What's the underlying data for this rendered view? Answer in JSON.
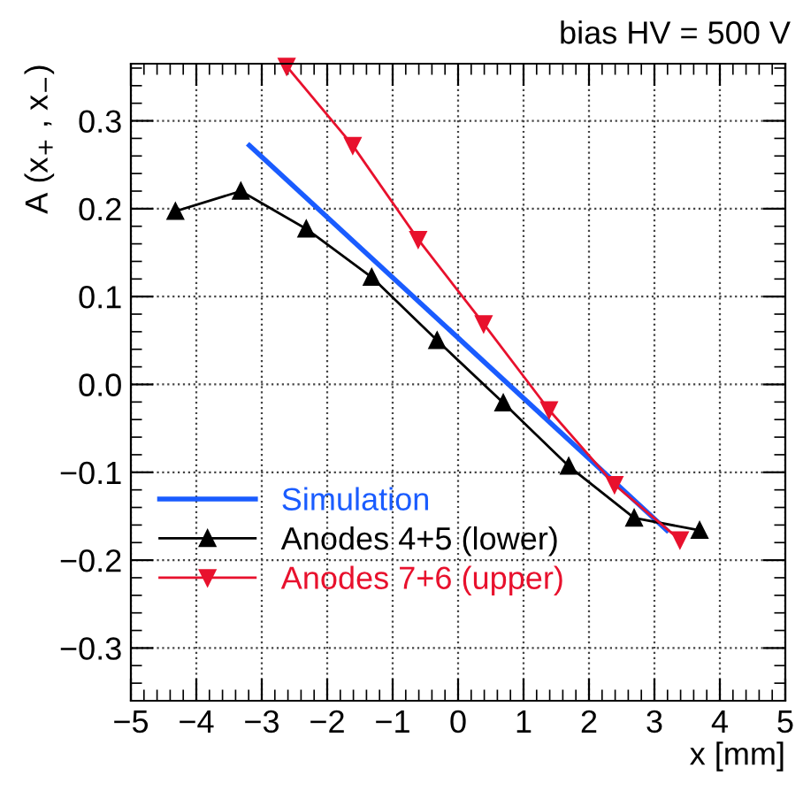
{
  "chart_data": {
    "type": "line",
    "title": "bias HV = 500 V",
    "xlabel": "x [mm]",
    "ylabel": "A (x$_{+}$ , x$_{−}$)",
    "xlim": [
      -5,
      5
    ],
    "ylim": [
      -0.36,
      0.365
    ],
    "xticks": [
      -5,
      -4,
      -3,
      -2,
      -1,
      0,
      1,
      2,
      3,
      4,
      5
    ],
    "yticks": [
      {
        "value": -0.3,
        "label": "−0.3"
      },
      {
        "value": -0.2,
        "label": "−0.2"
      },
      {
        "value": -0.1,
        "label": "−0.1"
      },
      {
        "value": 0,
        "label": "0.0"
      },
      0.1,
      0.2,
      0.3
    ],
    "grid": true,
    "legend": "bottom left",
    "series": [
      {
        "name": "Simulation",
        "color": "#1a5cff",
        "marker": "none",
        "x": [
          -3.19,
          3.19
        ],
        "values": [
          0.272,
          -0.166
        ]
      },
      {
        "name": "Anodes 4+5 (lower)",
        "color": "#000000",
        "marker": "triangle",
        "x": [
          -4.32,
          -3.32,
          -2.32,
          -1.32,
          -0.32,
          0.69,
          1.69,
          2.69,
          3.69
        ],
        "values": [
          0.197,
          0.22,
          0.177,
          0.122,
          0.05,
          -0.021,
          -0.093,
          -0.152,
          -0.166
        ]
      },
      {
        "name": "Anodes 7+6 (upper)",
        "color": "#e8112d",
        "marker": "triangle_down",
        "x": [
          -2.62,
          -1.61,
          -0.61,
          0.39,
          1.39,
          2.39,
          3.39
        ],
        "values": [
          0.362,
          0.272,
          0.165,
          0.069,
          -0.029,
          -0.114,
          -0.177
        ]
      }
    ]
  }
}
